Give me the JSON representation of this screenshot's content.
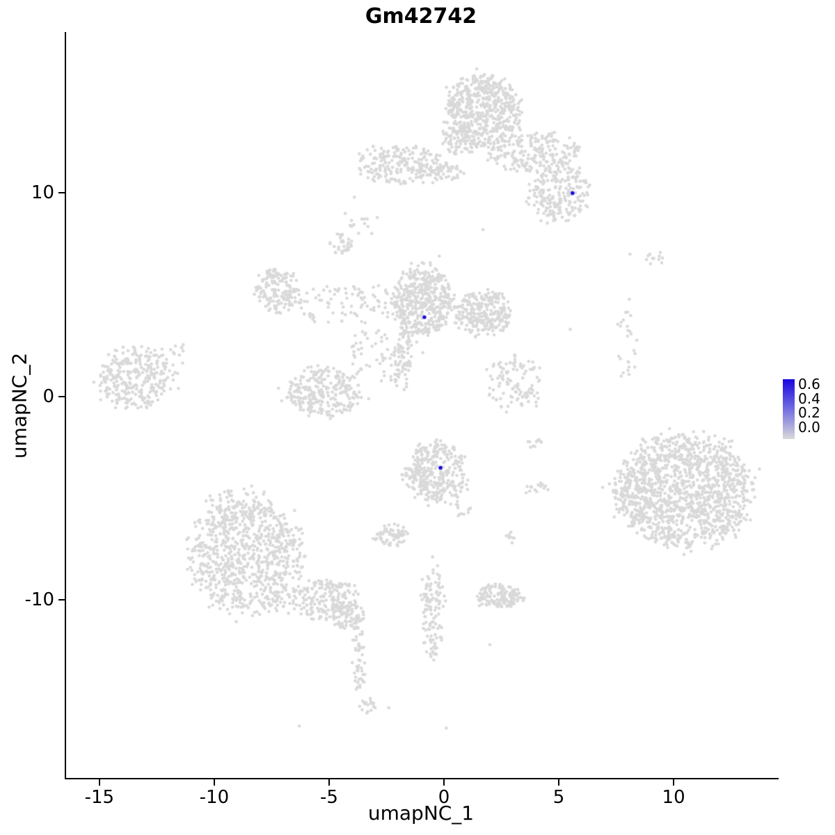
{
  "chart_data": {
    "type": "scatter",
    "title": "Gm42742",
    "xlabel": "umapNC_1",
    "ylabel": "umapNC_2",
    "xlim": [
      -16.45,
      14.45
    ],
    "ylim": [
      -18.75,
      17.85
    ],
    "x_ticks": [
      -15,
      -10,
      -5,
      0,
      5,
      10
    ],
    "y_ticks": [
      -10,
      0,
      10
    ],
    "grid": false,
    "point_color": "#d9d9d9",
    "highlight_color": "#1a06e0",
    "background_clusters": [
      {
        "x": 1.7,
        "y": 14.0,
        "rx": 1.6,
        "ry": 1.75,
        "n": 550
      },
      {
        "x": 0.6,
        "y": 12.6,
        "rx": 0.7,
        "ry": 0.8,
        "n": 70
      },
      {
        "x": 3.9,
        "y": 12.0,
        "rx": 1.9,
        "ry": 1.0,
        "n": 220
      },
      {
        "x": 5.0,
        "y": 10.0,
        "rx": 1.3,
        "ry": 1.4,
        "n": 210
      },
      {
        "x": -1.9,
        "y": 11.4,
        "rx": 1.8,
        "ry": 0.95,
        "n": 210
      },
      {
        "x": -0.2,
        "y": 11.0,
        "rx": 1.0,
        "ry": 0.5,
        "n": 50
      },
      {
        "x": -4.5,
        "y": 7.5,
        "rx": 0.45,
        "ry": 0.55,
        "n": 30
      },
      {
        "x": -3.6,
        "y": 8.3,
        "rx": 0.5,
        "ry": 0.6,
        "n": 12
      },
      {
        "x": -0.9,
        "y": 4.7,
        "rx": 1.25,
        "ry": 1.7,
        "n": 430
      },
      {
        "x": 1.7,
        "y": 4.1,
        "rx": 1.25,
        "ry": 1.1,
        "n": 260
      },
      {
        "x": -7.2,
        "y": 5.3,
        "rx": 1.0,
        "ry": 1.1,
        "n": 160
      },
      {
        "x": -4.3,
        "y": 4.5,
        "rx": 2.3,
        "ry": 1.0,
        "n": 90
      },
      {
        "x": -5.3,
        "y": 0.2,
        "rx": 1.6,
        "ry": 1.2,
        "n": 260
      },
      {
        "x": -2.6,
        "y": 2.1,
        "rx": 1.5,
        "ry": 1.6,
        "n": 70
      },
      {
        "x": -1.6,
        "y": 2.9,
        "rx": 0.35,
        "ry": 0.9,
        "n": 30
      },
      {
        "x": -13.4,
        "y": 0.9,
        "rx": 1.7,
        "ry": 1.5,
        "n": 290
      },
      {
        "x": -11.7,
        "y": 2.0,
        "rx": 0.7,
        "ry": 0.7,
        "n": 12
      },
      {
        "x": -1.9,
        "y": 1.4,
        "rx": 0.4,
        "ry": 1.3,
        "n": 40
      },
      {
        "x": 8.0,
        "y": 2.6,
        "rx": 0.4,
        "ry": 2.2,
        "n": 26
      },
      {
        "x": 9.2,
        "y": 6.8,
        "rx": 0.45,
        "ry": 0.35,
        "n": 12
      },
      {
        "x": 3.1,
        "y": 0.6,
        "rx": 1.3,
        "ry": 1.3,
        "n": 110
      },
      {
        "x": -0.3,
        "y": -3.7,
        "rx": 1.3,
        "ry": 1.5,
        "n": 330
      },
      {
        "x": 10.5,
        "y": -4.6,
        "rx": 2.9,
        "ry": 2.7,
        "n": 1250
      },
      {
        "x": 8.3,
        "y": -5.0,
        "rx": 1.0,
        "ry": 1.3,
        "n": 110
      },
      {
        "x": -8.6,
        "y": -7.9,
        "rx": 2.4,
        "ry": 2.7,
        "n": 820
      },
      {
        "x": -8.9,
        "y": -5.3,
        "rx": 1.6,
        "ry": 0.8,
        "n": 60
      },
      {
        "x": -5.3,
        "y": -10.0,
        "rx": 1.5,
        "ry": 0.95,
        "n": 180
      },
      {
        "x": -4.2,
        "y": -10.8,
        "rx": 0.75,
        "ry": 0.7,
        "n": 90
      },
      {
        "x": -3.7,
        "y": -13.0,
        "rx": 0.3,
        "ry": 1.5,
        "n": 45
      },
      {
        "x": -3.3,
        "y": -15.3,
        "rx": 0.45,
        "ry": 0.4,
        "n": 18
      },
      {
        "x": -2.3,
        "y": -6.8,
        "rx": 0.75,
        "ry": 0.55,
        "n": 60
      },
      {
        "x": -0.5,
        "y": -10.7,
        "rx": 0.5,
        "ry": 2.4,
        "n": 115
      },
      {
        "x": 2.4,
        "y": -9.8,
        "rx": 1.0,
        "ry": 0.6,
        "n": 140
      },
      {
        "x": 0.9,
        "y": -5.6,
        "rx": 0.5,
        "ry": 0.5,
        "n": 12
      },
      {
        "x": 4.0,
        "y": -4.5,
        "rx": 0.45,
        "ry": 0.35,
        "n": 15
      },
      {
        "x": 3.9,
        "y": -2.3,
        "rx": 0.35,
        "ry": 0.35,
        "n": 10
      },
      {
        "x": 2.9,
        "y": -6.9,
        "rx": 0.3,
        "ry": 0.3,
        "n": 8
      }
    ],
    "scatter_points": [
      [
        -2.9,
        8.8
      ],
      [
        -3.9,
        9.8
      ],
      [
        -4.3,
        9.0
      ],
      [
        1.7,
        8.2
      ],
      [
        5.5,
        3.3
      ],
      [
        8.1,
        7.0
      ],
      [
        -11.9,
        2.3
      ],
      [
        -6.3,
        -16.2
      ],
      [
        -2.4,
        -15.3
      ],
      [
        0.1,
        -16.3
      ],
      [
        2.0,
        -12.2
      ],
      [
        -0.2,
        6.9
      ]
    ],
    "highlighted_points": [
      {
        "x": 5.6,
        "y": 10.0,
        "value": 0.6
      },
      {
        "x": -0.85,
        "y": 3.9,
        "value": 0.6
      },
      {
        "x": -0.15,
        "y": -3.5,
        "value": 0.6
      }
    ],
    "legend": {
      "position": "right",
      "ticks": [
        "0.6",
        "0.4",
        "0.2",
        "0.0"
      ],
      "gradient_stops": [
        "#1a06e0",
        "#736ee0",
        "#d9d9d9"
      ]
    }
  }
}
